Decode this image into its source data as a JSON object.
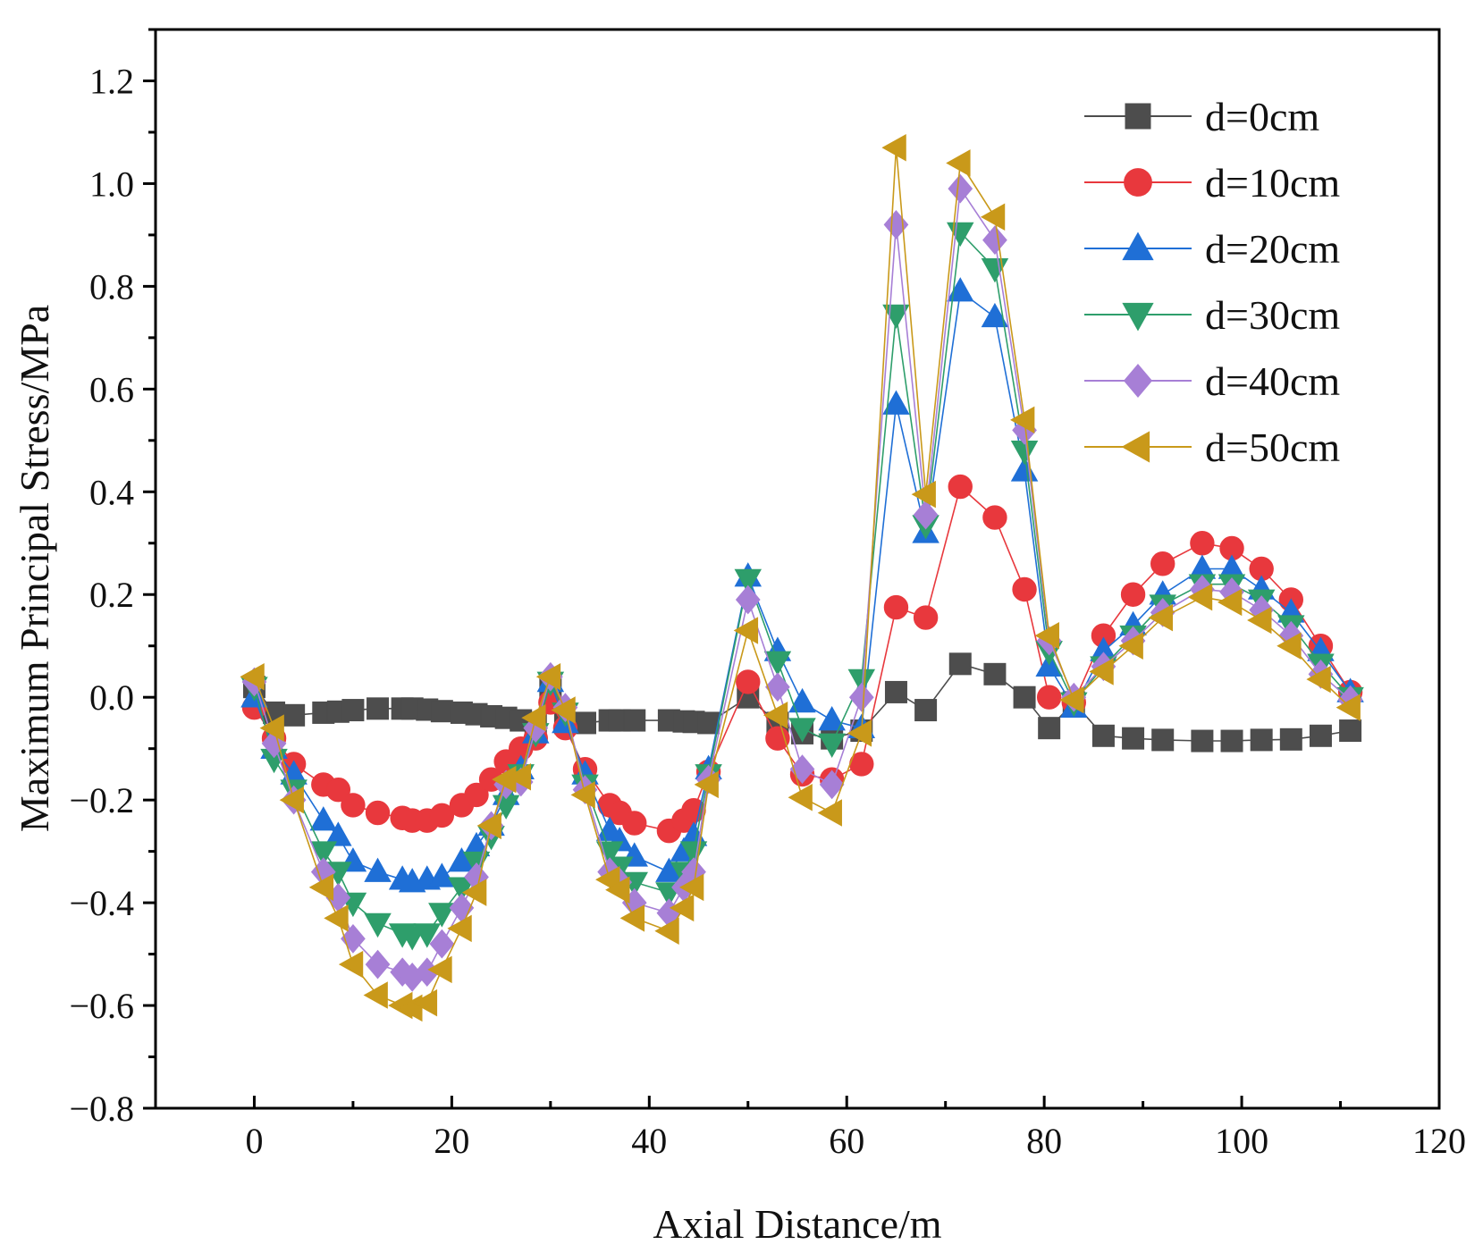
{
  "chart_data": {
    "type": "line",
    "title": "",
    "xlabel": "Axial Distance/m",
    "ylabel": "Maximum Principal Stress/MPa",
    "xlim": [
      -10,
      120
    ],
    "ylim": [
      -0.8,
      1.3
    ],
    "xticks": [
      0,
      20,
      40,
      60,
      80,
      100,
      120
    ],
    "yticks": [
      -0.8,
      -0.6,
      -0.4,
      -0.2,
      0.0,
      0.2,
      0.4,
      0.6,
      0.8,
      1.0,
      1.2
    ],
    "xtick_labels": [
      "0",
      "20",
      "40",
      "60",
      "80",
      "100",
      "120"
    ],
    "ytick_labels": [
      "−0.8",
      "−0.6",
      "−0.4",
      "−0.2",
      "0.0",
      "0.2",
      "0.4",
      "0.6",
      "0.8",
      "1.0",
      "1.2"
    ],
    "legend_position": "top-right",
    "grid": false,
    "x": [
      0,
      2,
      4,
      7,
      8.5,
      10,
      12.5,
      15,
      16,
      17.5,
      19,
      21,
      22.5,
      24,
      25.5,
      27,
      28.5,
      30,
      31.5,
      33.5,
      36,
      37,
      38.5,
      42,
      43.5,
      44.5,
      46,
      50,
      53,
      55.5,
      58.5,
      61.5,
      65,
      68,
      71.5,
      75,
      78,
      80.5,
      83,
      86,
      89,
      92,
      96,
      99,
      102,
      105,
      108,
      111
    ],
    "series": [
      {
        "name": "d=0cm",
        "color": "#4d4d4d",
        "marker": "square",
        "values": [
          0.02,
          -0.03,
          -0.035,
          -0.03,
          -0.028,
          -0.025,
          -0.022,
          -0.022,
          -0.022,
          -0.024,
          -0.027,
          -0.03,
          -0.033,
          -0.037,
          -0.04,
          -0.045,
          -0.05,
          0.02,
          -0.05,
          -0.05,
          -0.045,
          -0.045,
          -0.045,
          -0.045,
          -0.047,
          -0.048,
          -0.05,
          0.0,
          -0.05,
          -0.07,
          -0.08,
          -0.065,
          0.01,
          -0.025,
          0.065,
          0.045,
          0.0,
          -0.06,
          -0.01,
          -0.075,
          -0.08,
          -0.083,
          -0.085,
          -0.085,
          -0.083,
          -0.082,
          -0.075,
          -0.065
        ]
      },
      {
        "name": "d=10cm",
        "color": "#e8383d",
        "marker": "circle",
        "values": [
          -0.02,
          -0.08,
          -0.13,
          -0.17,
          -0.18,
          -0.21,
          -0.225,
          -0.235,
          -0.24,
          -0.24,
          -0.23,
          -0.21,
          -0.19,
          -0.16,
          -0.125,
          -0.1,
          -0.08,
          -0.01,
          -0.06,
          -0.14,
          -0.21,
          -0.225,
          -0.245,
          -0.26,
          -0.24,
          -0.22,
          -0.145,
          0.03,
          -0.08,
          -0.15,
          -0.16,
          -0.13,
          0.175,
          0.155,
          0.41,
          0.35,
          0.21,
          0.0,
          -0.01,
          0.12,
          0.2,
          0.26,
          0.3,
          0.29,
          0.25,
          0.19,
          0.1,
          0.01
        ]
      },
      {
        "name": "d=20cm",
        "color": "#1f6fd6",
        "marker": "triangle-up",
        "values": [
          0.0,
          -0.1,
          -0.15,
          -0.24,
          -0.27,
          -0.32,
          -0.34,
          -0.355,
          -0.36,
          -0.355,
          -0.35,
          -0.32,
          -0.29,
          -0.25,
          -0.19,
          -0.14,
          -0.07,
          0.03,
          -0.05,
          -0.15,
          -0.26,
          -0.28,
          -0.31,
          -0.34,
          -0.3,
          -0.27,
          -0.14,
          0.235,
          0.09,
          -0.01,
          -0.045,
          -0.06,
          0.57,
          0.32,
          0.79,
          0.74,
          0.44,
          0.06,
          -0.02,
          0.09,
          0.14,
          0.2,
          0.25,
          0.25,
          0.21,
          0.165,
          0.09,
          0.01
        ]
      },
      {
        "name": "d=30cm",
        "color": "#2e9e6b",
        "marker": "triangle-down",
        "values": [
          0.02,
          -0.12,
          -0.18,
          -0.3,
          -0.34,
          -0.4,
          -0.44,
          -0.46,
          -0.465,
          -0.46,
          -0.42,
          -0.37,
          -0.32,
          -0.27,
          -0.21,
          -0.15,
          -0.07,
          0.03,
          -0.03,
          -0.17,
          -0.3,
          -0.33,
          -0.36,
          -0.38,
          -0.34,
          -0.3,
          -0.15,
          0.23,
          0.07,
          -0.06,
          -0.09,
          0.035,
          0.745,
          0.335,
          0.905,
          0.835,
          0.48,
          0.09,
          -0.01,
          0.06,
          0.12,
          0.18,
          0.22,
          0.22,
          0.19,
          0.14,
          0.065,
          0.0
        ]
      },
      {
        "name": "d=40cm",
        "color": "#a77fd6",
        "marker": "diamond",
        "values": [
          0.03,
          -0.09,
          -0.2,
          -0.34,
          -0.39,
          -0.47,
          -0.52,
          -0.535,
          -0.545,
          -0.535,
          -0.48,
          -0.41,
          -0.35,
          -0.25,
          -0.17,
          -0.165,
          -0.06,
          0.04,
          -0.02,
          -0.18,
          -0.34,
          -0.36,
          -0.4,
          -0.42,
          -0.37,
          -0.34,
          -0.16,
          0.19,
          0.02,
          -0.14,
          -0.17,
          -0.0,
          0.92,
          0.355,
          0.99,
          0.89,
          0.52,
          0.11,
          -0.0,
          0.06,
          0.11,
          0.165,
          0.21,
          0.205,
          0.17,
          0.12,
          0.045,
          -0.005
        ]
      },
      {
        "name": "d=50cm",
        "color": "#c9991a",
        "marker": "triangle-left",
        "values": [
          0.04,
          -0.06,
          -0.2,
          -0.37,
          -0.43,
          -0.52,
          -0.58,
          -0.6,
          -0.605,
          -0.595,
          -0.53,
          -0.45,
          -0.38,
          -0.25,
          -0.16,
          -0.155,
          -0.04,
          0.04,
          -0.025,
          -0.19,
          -0.355,
          -0.375,
          -0.43,
          -0.455,
          -0.41,
          -0.37,
          -0.17,
          0.13,
          -0.035,
          -0.195,
          -0.225,
          -0.07,
          1.07,
          0.395,
          1.04,
          0.935,
          0.54,
          0.12,
          -0.005,
          0.05,
          0.1,
          0.155,
          0.195,
          0.185,
          0.15,
          0.1,
          0.035,
          -0.02
        ]
      }
    ]
  }
}
